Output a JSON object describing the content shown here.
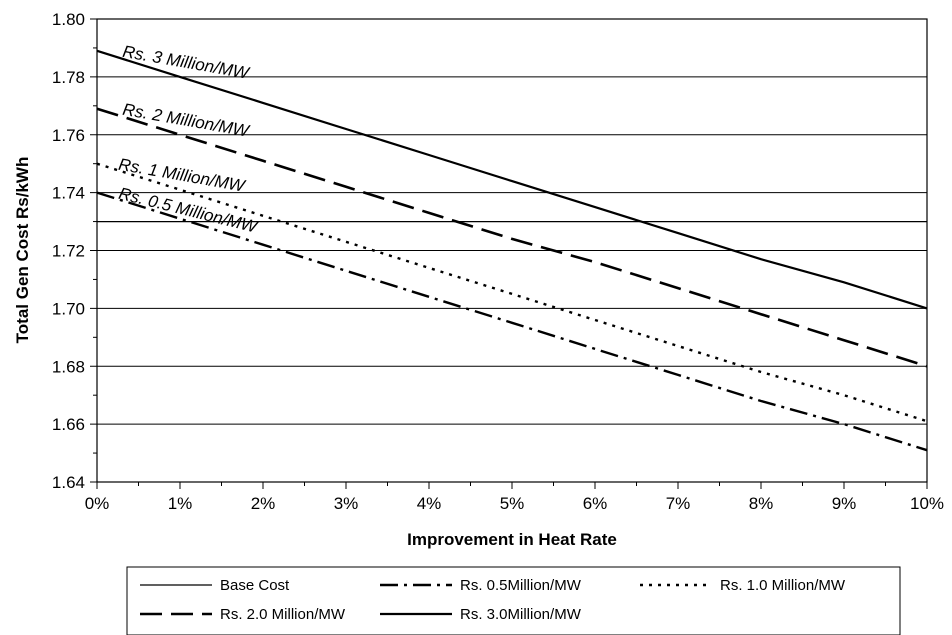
{
  "chart_data": {
    "type": "line",
    "title": "",
    "xlabel": "Improvement in Heat Rate",
    "ylabel": "Total Gen Cost Rs/kWh",
    "xlim": [
      0,
      10
    ],
    "ylim": [
      1.64,
      1.8
    ],
    "x_ticks": [
      0,
      1,
      2,
      3,
      4,
      5,
      6,
      7,
      8,
      9,
      10
    ],
    "x_tick_labels": [
      "0%",
      "1%",
      "2%",
      "3%",
      "4%",
      "5%",
      "6%",
      "7%",
      "8%",
      "9%",
      "10%"
    ],
    "y_ticks": [
      1.64,
      1.66,
      1.68,
      1.7,
      1.72,
      1.74,
      1.76,
      1.78,
      1.8
    ],
    "y_tick_labels": [
      "1.64",
      "1.66",
      "1.68",
      "1.70",
      "1.72",
      "1.74",
      "1.76",
      "1.78",
      "1.80"
    ],
    "grid": "horizontal",
    "legend_position": "bottom",
    "series": [
      {
        "name": "Base Cost",
        "style": "solid-thin",
        "x": [
          0,
          10
        ],
        "values": [
          1.73,
          1.73
        ]
      },
      {
        "name": "Rs. 0.5Million/MW",
        "style": "dash-dot",
        "x": [
          0,
          1,
          2,
          3,
          4,
          5,
          6,
          7,
          8,
          9,
          10
        ],
        "values": [
          1.74,
          1.731,
          1.722,
          1.713,
          1.704,
          1.695,
          1.686,
          1.677,
          1.668,
          1.66,
          1.651
        ]
      },
      {
        "name": "Rs. 1.0 Million/MW",
        "style": "dotted",
        "x": [
          0,
          1,
          2,
          3,
          4,
          5,
          6,
          7,
          8,
          9,
          10
        ],
        "values": [
          1.75,
          1.741,
          1.732,
          1.723,
          1.714,
          1.705,
          1.696,
          1.687,
          1.678,
          1.67,
          1.661
        ]
      },
      {
        "name": "Rs. 2.0 Million/MW",
        "style": "long-dash",
        "x": [
          0,
          1,
          2,
          3,
          4,
          5,
          6,
          7,
          8,
          9,
          10
        ],
        "values": [
          1.769,
          1.76,
          1.751,
          1.742,
          1.733,
          1.724,
          1.716,
          1.707,
          1.698,
          1.689,
          1.68
        ]
      },
      {
        "name": "Rs. 3.0Million/MW",
        "style": "solid-thick",
        "x": [
          0,
          1,
          2,
          3,
          4,
          5,
          6,
          7,
          8,
          9,
          10
        ],
        "values": [
          1.789,
          1.78,
          1.771,
          1.762,
          1.753,
          1.744,
          1.735,
          1.726,
          1.717,
          1.709,
          1.7
        ]
      }
    ],
    "annotations": [
      {
        "text": "Rs. 3 Million/MW",
        "x": 0.3,
        "y": 1.787,
        "angle": 10
      },
      {
        "text": "Rs. 2 Million/MW",
        "x": 0.3,
        "y": 1.767,
        "angle": 10
      },
      {
        "text": "Rs. 1 Million/MW",
        "x": 0.25,
        "y": 1.748,
        "angle": 10
      },
      {
        "text": "Rs. 0.5 Million/MW",
        "x": 0.25,
        "y": 1.738,
        "angle": 14
      }
    ]
  }
}
